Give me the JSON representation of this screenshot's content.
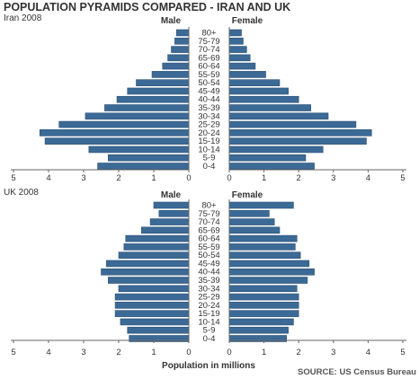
{
  "title": "POPULATION PYRAMIDS COMPARED - IRAN AND UK",
  "xlabel": "Population in millions",
  "source": "SOURCE: US Census Bureau",
  "bar_color": "#3c6a96",
  "bar_edge_color": "#2a4f73",
  "axis_color": "#666666",
  "chart_data": [
    {
      "type": "bar",
      "subtitle": "Iran 2008",
      "left_label": "Male",
      "right_label": "Female",
      "xlim": [
        0,
        5
      ],
      "xticks": [
        "5",
        "4",
        "3",
        "2",
        "1",
        "0",
        "0",
        "1",
        "2",
        "3",
        "4",
        "5"
      ],
      "categories": [
        "80+",
        "75-79",
        "70-74",
        "65-69",
        "60-64",
        "55-59",
        "50-54",
        "45-49",
        "40-44",
        "35-39",
        "30-34",
        "25-29",
        "20-24",
        "15-19",
        "10-14",
        "5-9",
        "0-4"
      ],
      "series": [
        {
          "name": "Male",
          "values": [
            0.35,
            0.4,
            0.5,
            0.6,
            0.75,
            1.05,
            1.5,
            1.75,
            2.05,
            2.4,
            2.95,
            3.7,
            4.25,
            4.1,
            2.85,
            2.3,
            2.6
          ]
        },
        {
          "name": "Female",
          "values": [
            0.35,
            0.4,
            0.5,
            0.6,
            0.75,
            1.05,
            1.45,
            1.7,
            2.0,
            2.35,
            2.85,
            3.65,
            4.1,
            3.95,
            2.7,
            2.2,
            2.45
          ]
        }
      ]
    },
    {
      "type": "bar",
      "subtitle": "UK 2008",
      "left_label": "Male",
      "right_label": "Female",
      "xlim": [
        0,
        5
      ],
      "xticks": [
        "5",
        "4",
        "3",
        "2",
        "1",
        "0",
        "0",
        "1",
        "2",
        "3",
        "4",
        "5"
      ],
      "categories": [
        "80+",
        "75-79",
        "70-74",
        "65-69",
        "60-64",
        "55-59",
        "50-54",
        "45-49",
        "40-44",
        "35-39",
        "30-34",
        "25-29",
        "20-24",
        "15-19",
        "10-14",
        "5-9",
        "0-4"
      ],
      "series": [
        {
          "name": "Male",
          "values": [
            1.0,
            0.85,
            1.1,
            1.35,
            1.8,
            1.85,
            2.0,
            2.35,
            2.5,
            2.3,
            2.0,
            2.1,
            2.1,
            2.1,
            1.95,
            1.75,
            1.7
          ]
        },
        {
          "name": "Female",
          "values": [
            1.85,
            1.15,
            1.3,
            1.45,
            1.95,
            1.9,
            2.05,
            2.3,
            2.45,
            2.25,
            1.95,
            2.0,
            2.0,
            2.0,
            1.85,
            1.7,
            1.65
          ]
        }
      ]
    }
  ]
}
